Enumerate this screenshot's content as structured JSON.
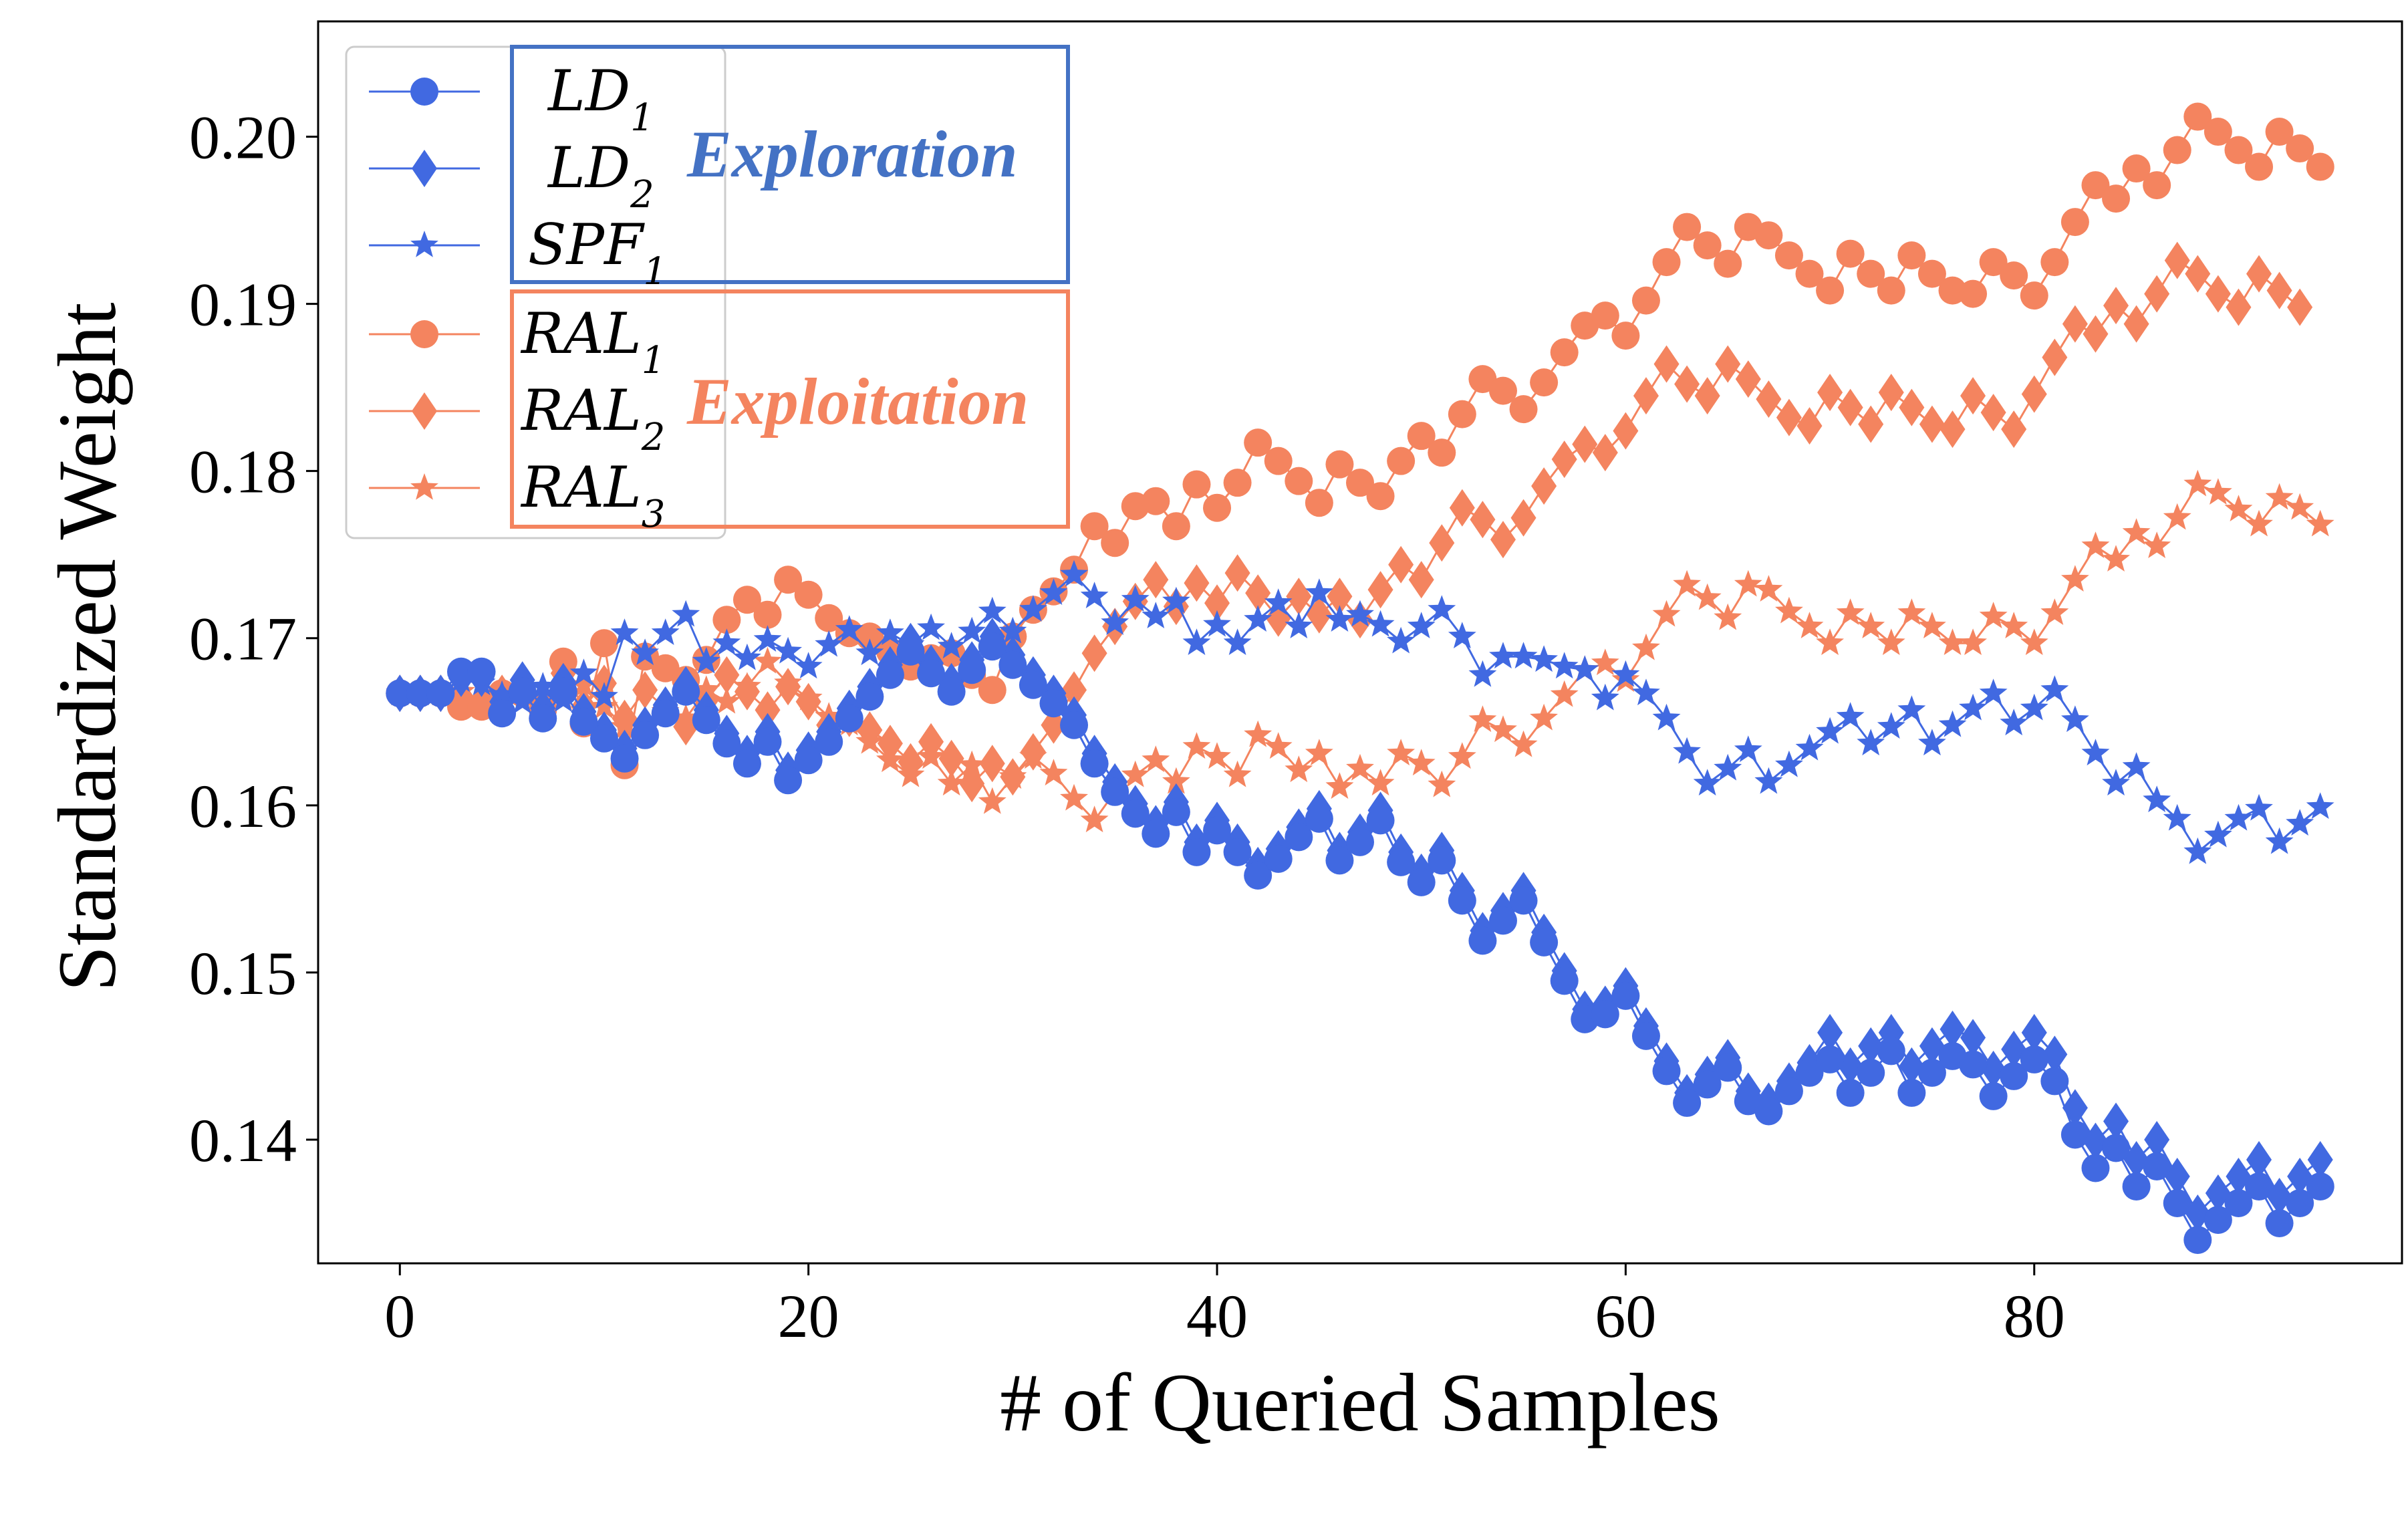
{
  "chart_data": {
    "type": "line",
    "xlabel": "# of Queried Samples",
    "ylabel": "Standardized Weight",
    "xlim": [
      -4,
      98
    ],
    "ylim": [
      0.1326,
      0.2069
    ],
    "xticks": [
      0,
      20,
      40,
      60,
      80
    ],
    "yticks": [
      0.14,
      0.15,
      0.16,
      0.17,
      0.18,
      0.19,
      0.2
    ],
    "ytick_labels": [
      "0.14",
      "0.15",
      "0.16",
      "0.17",
      "0.18",
      "0.19",
      "0.20"
    ],
    "groups": [
      {
        "label": "Exploration",
        "color": "#4472c4",
        "members": [
          "LD1",
          "LD2",
          "SPF1"
        ]
      },
      {
        "label": "Exploitation",
        "color": "#f4845f",
        "members": [
          "RAL1",
          "RAL2",
          "RAL3"
        ]
      }
    ],
    "series": [
      {
        "key": "LD1",
        "name": "LD",
        "sub": "1",
        "marker": "circle",
        "color": "#4169e1",
        "values": [
          0.1667,
          0.1667,
          0.1667,
          0.168,
          0.168,
          0.1655,
          0.1668,
          0.1652,
          0.1668,
          0.165,
          0.164,
          0.1628,
          0.1642,
          0.1655,
          0.1668,
          0.1651,
          0.1637,
          0.1625,
          0.1638,
          0.1615,
          0.1627,
          0.1638,
          0.1652,
          0.1665,
          0.1678,
          0.1692,
          0.1679,
          0.1668,
          0.1681,
          0.1695,
          0.1684,
          0.1672,
          0.1661,
          0.1648,
          0.1625,
          0.1608,
          0.1595,
          0.1583,
          0.1596,
          0.1572,
          0.1585,
          0.1572,
          0.1558,
          0.1568,
          0.1581,
          0.1592,
          0.1567,
          0.1578,
          0.1591,
          0.1566,
          0.1554,
          0.1567,
          0.1543,
          0.1519,
          0.1531,
          0.1543,
          0.1518,
          0.1495,
          0.1472,
          0.1475,
          0.1486,
          0.1462,
          0.1441,
          0.1422,
          0.1433,
          0.1443,
          0.1423,
          0.1417,
          0.1429,
          0.144,
          0.1448,
          0.1428,
          0.144,
          0.1453,
          0.1428,
          0.144,
          0.145,
          0.1445,
          0.1426,
          0.1438,
          0.1448,
          0.1435,
          0.1403,
          0.1383,
          0.1395,
          0.1372,
          0.1384,
          0.1362,
          0.134,
          0.1352,
          0.1362,
          0.1372,
          0.135,
          0.1362,
          0.1372
        ]
      },
      {
        "key": "LD2",
        "name": "LD",
        "sub": "2",
        "marker": "diamond",
        "color": "#4169e1",
        "values": [
          0.1667,
          0.1667,
          0.1667,
          0.1676,
          0.1676,
          0.1662,
          0.1675,
          0.1658,
          0.1674,
          0.1656,
          0.1645,
          0.1634,
          0.1648,
          0.166,
          0.1672,
          0.1657,
          0.1643,
          0.1631,
          0.1644,
          0.1621,
          0.1633,
          0.1644,
          0.1658,
          0.1671,
          0.1684,
          0.1698,
          0.1685,
          0.1674,
          0.1687,
          0.1701,
          0.169,
          0.1678,
          0.1667,
          0.1654,
          0.1631,
          0.1614,
          0.1601,
          0.1589,
          0.1602,
          0.1578,
          0.1591,
          0.1578,
          0.1564,
          0.1574,
          0.1587,
          0.1598,
          0.1573,
          0.1584,
          0.1597,
          0.1572,
          0.156,
          0.1573,
          0.1549,
          0.1525,
          0.1537,
          0.1549,
          0.1524,
          0.1501,
          0.1478,
          0.1481,
          0.1492,
          0.1468,
          0.1447,
          0.1428,
          0.1439,
          0.1449,
          0.1429,
          0.1423,
          0.1435,
          0.1446,
          0.1464,
          0.1444,
          0.1456,
          0.1464,
          0.1444,
          0.1456,
          0.1466,
          0.1461,
          0.1442,
          0.1454,
          0.1464,
          0.1451,
          0.1419,
          0.1399,
          0.1411,
          0.1388,
          0.14,
          0.1378,
          0.1356,
          0.1368,
          0.1378,
          0.1388,
          0.1366,
          0.1378,
          0.1388
        ]
      },
      {
        "key": "SPF1",
        "name": "SPF",
        "sub": "1",
        "marker": "star",
        "color": "#4169e1",
        "values": [
          0.1667,
          0.1667,
          0.1667,
          0.1675,
          0.1673,
          0.1666,
          0.1662,
          0.1671,
          0.1663,
          0.1679,
          0.1665,
          0.1703,
          0.1691,
          0.1703,
          0.1714,
          0.1686,
          0.1697,
          0.1688,
          0.1699,
          0.1692,
          0.1683,
          0.1696,
          0.1705,
          0.1691,
          0.1703,
          0.1696,
          0.1706,
          0.1695,
          0.1704,
          0.1716,
          0.1704,
          0.1717,
          0.1727,
          0.1738,
          0.1725,
          0.1709,
          0.1723,
          0.1713,
          0.1722,
          0.1697,
          0.1708,
          0.1697,
          0.1711,
          0.1721,
          0.1707,
          0.1727,
          0.1711,
          0.1714,
          0.1708,
          0.1698,
          0.1707,
          0.1717,
          0.1701,
          0.1678,
          0.1689,
          0.1689,
          0.1687,
          0.1683,
          0.1681,
          0.1664,
          0.1678,
          0.1667,
          0.1652,
          0.1632,
          0.1613,
          0.1622,
          0.1633,
          0.1614,
          0.1624,
          0.1634,
          0.1644,
          0.1653,
          0.1637,
          0.1647,
          0.1657,
          0.1637,
          0.1648,
          0.1658,
          0.1667,
          0.1649,
          0.1658,
          0.1669,
          0.1651,
          0.1631,
          0.1613,
          0.1623,
          0.1603,
          0.1592,
          0.1572,
          0.1582,
          0.1592,
          0.1598,
          0.1578,
          0.1589,
          0.1599
        ]
      },
      {
        "key": "RAL1",
        "name": "RAL",
        "sub": "1",
        "marker": "circle",
        "color": "#f4845f",
        "values": [
          0.1667,
          0.1667,
          0.1667,
          0.1659,
          0.1659,
          0.1667,
          0.1667,
          0.1657,
          0.1686,
          0.1649,
          0.1697,
          0.1624,
          0.1689,
          0.1682,
          0.1675,
          0.1687,
          0.1711,
          0.1723,
          0.1714,
          0.1735,
          0.1726,
          0.1712,
          0.1703,
          0.1701,
          0.1692,
          0.1683,
          0.1688,
          0.1691,
          0.1678,
          0.1669,
          0.1701,
          0.1717,
          0.1728,
          0.1741,
          0.1767,
          0.1757,
          0.1779,
          0.1782,
          0.1767,
          0.1792,
          0.1778,
          0.1793,
          0.1817,
          0.1806,
          0.1794,
          0.1781,
          0.1804,
          0.1793,
          0.1785,
          0.1806,
          0.1821,
          0.1811,
          0.1834,
          0.1855,
          0.1848,
          0.1837,
          0.1853,
          0.1871,
          0.1887,
          0.1893,
          0.1881,
          0.1902,
          0.1925,
          0.1946,
          0.1935,
          0.1924,
          0.1946,
          0.1941,
          0.1929,
          0.1918,
          0.1908,
          0.193,
          0.1918,
          0.1908,
          0.1929,
          0.1918,
          0.1908,
          0.1906,
          0.1925,
          0.1917,
          0.1905,
          0.1925,
          0.1949,
          0.1971,
          0.1963,
          0.1981,
          0.1971,
          0.1992,
          0.2012,
          0.2003,
          0.1992,
          0.1982,
          0.2003,
          0.1993,
          0.1982
        ]
      },
      {
        "key": "RAL2",
        "name": "RAL",
        "sub": "2",
        "marker": "diamond",
        "color": "#f4845f",
        "values": [
          0.1667,
          0.1667,
          0.1667,
          0.1665,
          0.1662,
          0.1667,
          0.1671,
          0.1663,
          0.1679,
          0.1659,
          0.1673,
          0.1652,
          0.1669,
          0.1658,
          0.1647,
          0.1663,
          0.1678,
          0.1668,
          0.1657,
          0.1671,
          0.1662,
          0.1648,
          0.1652,
          0.1645,
          0.1637,
          0.1626,
          0.1638,
          0.1628,
          0.1613,
          0.1625,
          0.1617,
          0.1632,
          0.1648,
          0.1669,
          0.1691,
          0.1707,
          0.1722,
          0.1735,
          0.1719,
          0.1733,
          0.1721,
          0.1739,
          0.1727,
          0.1712,
          0.1725,
          0.1714,
          0.1725,
          0.1711,
          0.1729,
          0.1744,
          0.1735,
          0.1757,
          0.1778,
          0.1771,
          0.1759,
          0.1772,
          0.1791,
          0.1807,
          0.1816,
          0.1811,
          0.1824,
          0.1845,
          0.1864,
          0.1852,
          0.1845,
          0.1864,
          0.1855,
          0.1843,
          0.1832,
          0.1827,
          0.1847,
          0.1838,
          0.1828,
          0.1847,
          0.1838,
          0.1828,
          0.1825,
          0.1845,
          0.1835,
          0.1825,
          0.1846,
          0.1868,
          0.1888,
          0.1882,
          0.1899,
          0.1888,
          0.1906,
          0.1926,
          0.1918,
          0.1906,
          0.1898,
          0.1918,
          0.1908,
          0.1898
        ]
      },
      {
        "key": "RAL3",
        "name": "RAL",
        "sub": "3",
        "marker": "star",
        "color": "#f4845f",
        "values": [
          0.1667,
          0.1667,
          0.1667,
          0.1668,
          0.1663,
          0.1665,
          0.1669,
          0.1658,
          0.1664,
          0.1672,
          0.1659,
          0.1647,
          0.1642,
          0.1656,
          0.1652,
          0.1669,
          0.1662,
          0.1671,
          0.1686,
          0.1673,
          0.1664,
          0.1653,
          0.1649,
          0.1638,
          0.1627,
          0.1618,
          0.1629,
          0.1613,
          0.1624,
          0.1602,
          0.1617,
          0.1629,
          0.1619,
          0.1604,
          0.1591,
          0.1608,
          0.1618,
          0.1627,
          0.1614,
          0.1635,
          0.1629,
          0.1618,
          0.1642,
          0.1635,
          0.1621,
          0.1631,
          0.1611,
          0.1622,
          0.1613,
          0.1631,
          0.1625,
          0.1612,
          0.1629,
          0.1651,
          0.1645,
          0.1636,
          0.1652,
          0.1666,
          0.1681,
          0.1685,
          0.1675,
          0.1694,
          0.1714,
          0.1732,
          0.1724,
          0.1712,
          0.1732,
          0.1729,
          0.1716,
          0.1707,
          0.1697,
          0.1715,
          0.1707,
          0.1697,
          0.1715,
          0.1707,
          0.1697,
          0.1697,
          0.1713,
          0.1707,
          0.1697,
          0.1715,
          0.1735,
          0.1755,
          0.1747,
          0.1763,
          0.1755,
          0.1772,
          0.1792,
          0.1787,
          0.1777,
          0.1768,
          0.1784,
          0.1778,
          0.1768
        ]
      }
    ]
  }
}
